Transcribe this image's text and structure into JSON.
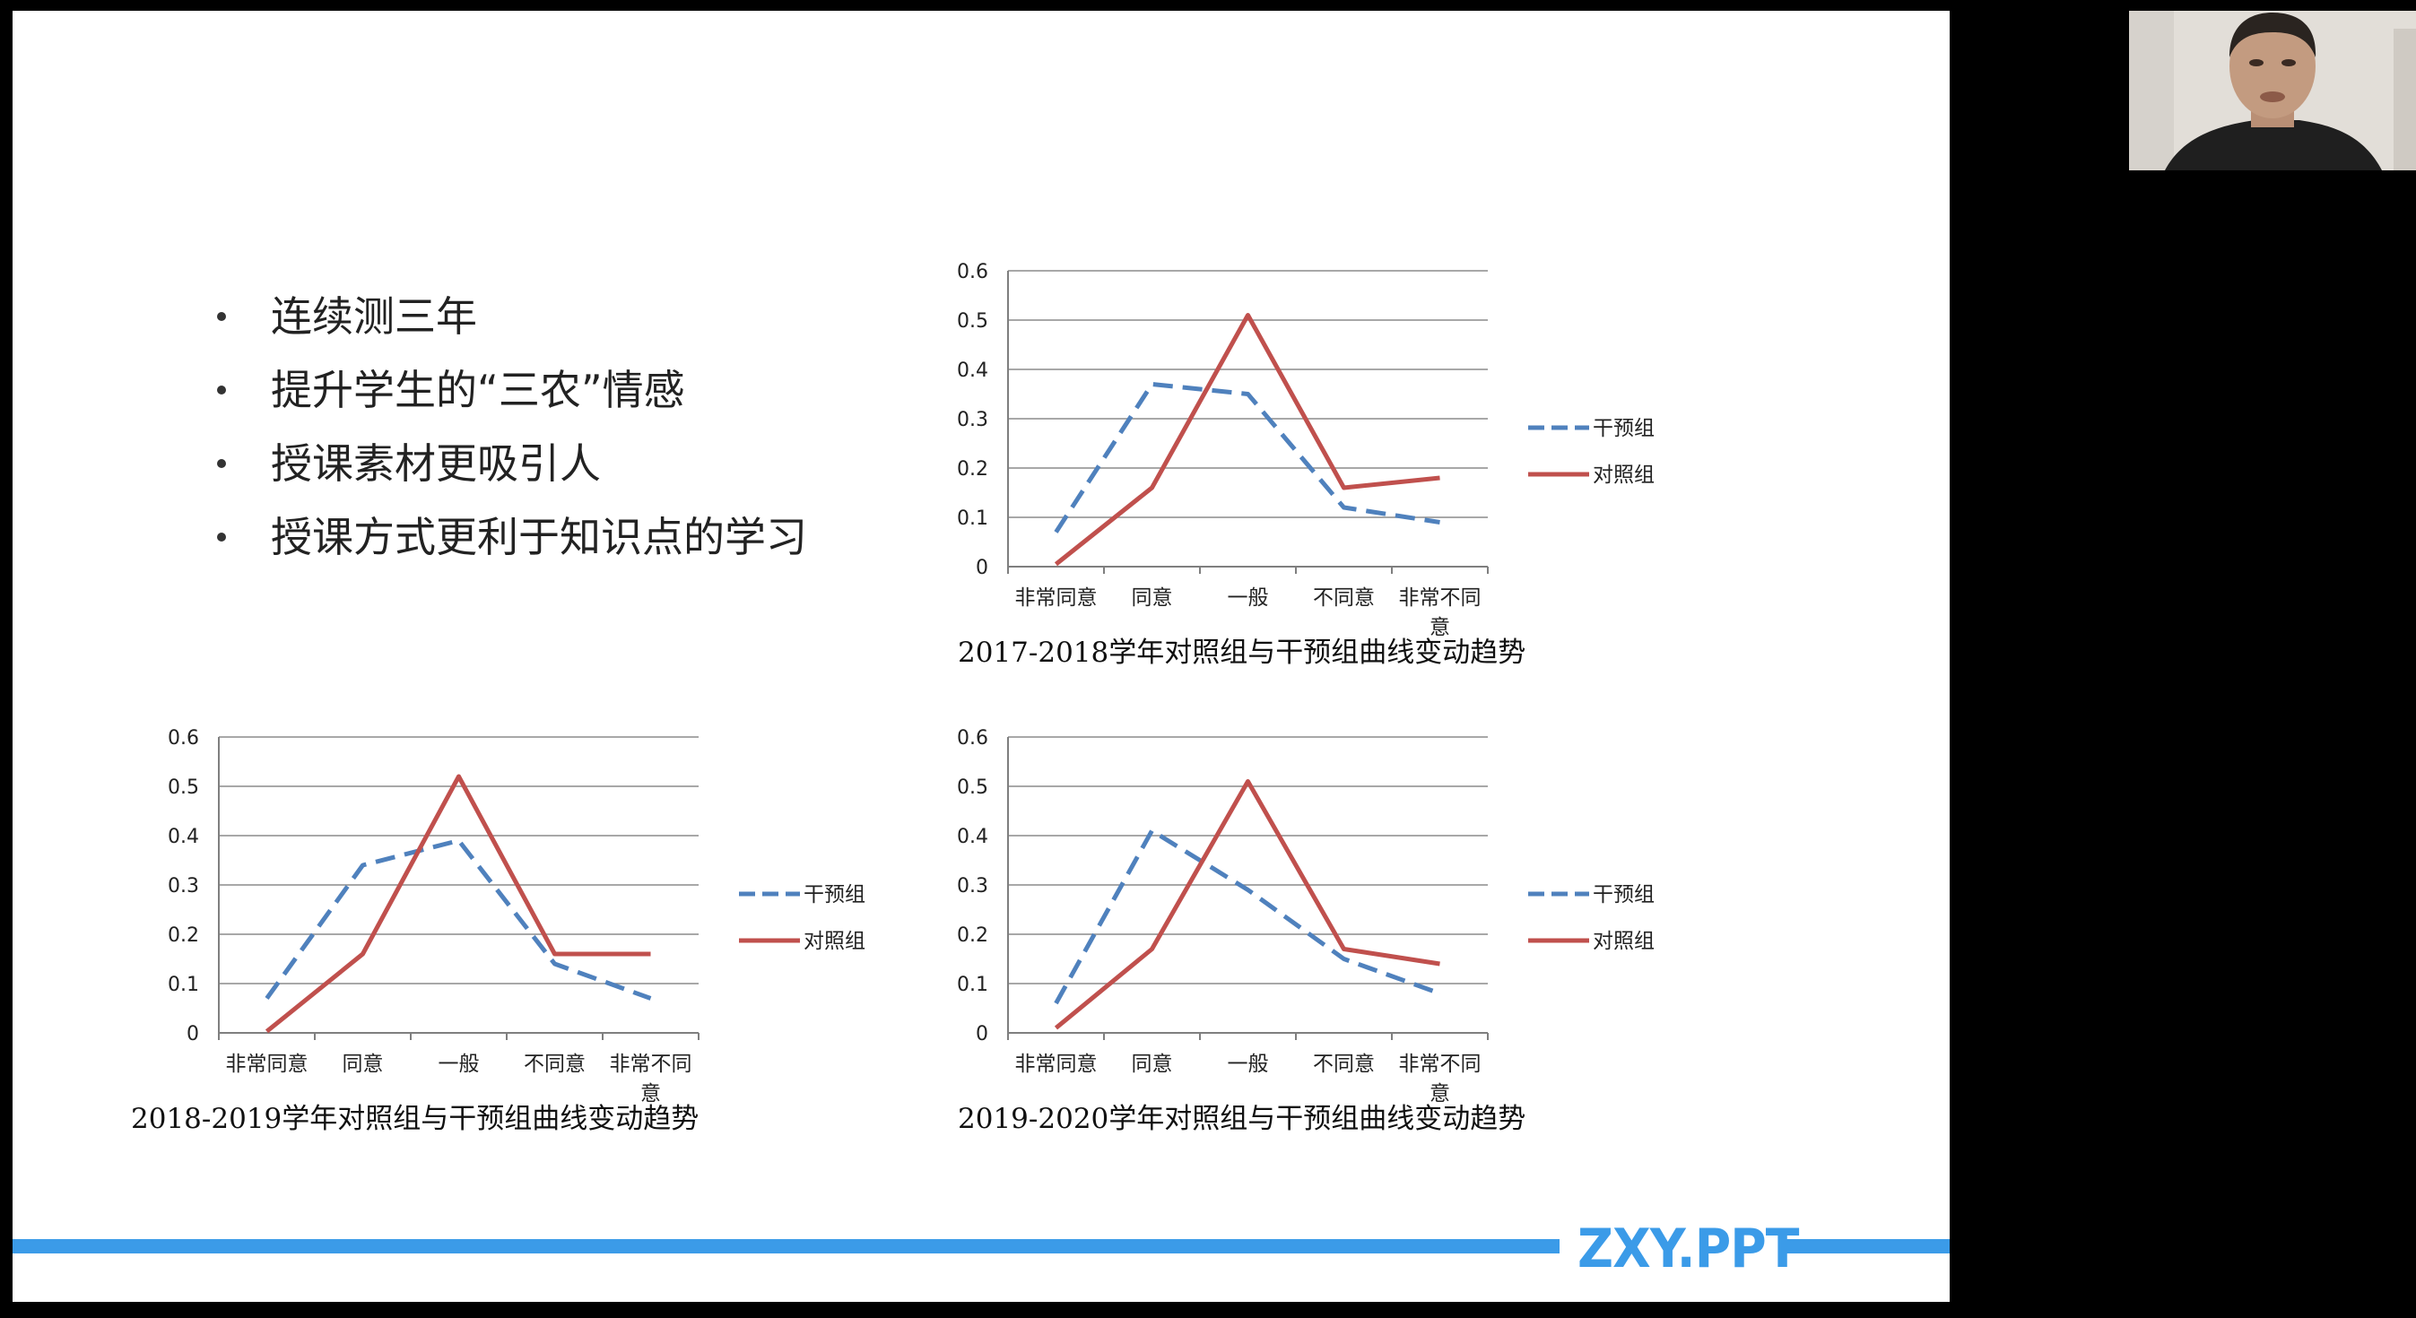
{
  "bullets": [
    "连续测三年",
    "提升学生的“三农”情感",
    "授课素材更吸引人",
    "授课方式更利于知识点的学习"
  ],
  "brand": "ZXY.PPT",
  "colors": {
    "intervention": "#4f81bd",
    "control": "#c0504d",
    "accent": "#3b9be8"
  },
  "chart_data": [
    {
      "type": "line",
      "title": "2017-2018学年对照组与干预组曲线变动趋势",
      "categories": [
        "非常同意",
        "同意",
        "一般",
        "不同意",
        "非常不同意"
      ],
      "ylim": [
        0,
        0.6
      ],
      "yticks": [
        "0",
        "0.1",
        "0.2",
        "0.3",
        "0.4",
        "0.5",
        "0.6"
      ],
      "grid": true,
      "legend": "right",
      "series": [
        {
          "name": "干预组",
          "values": [
            0.07,
            0.37,
            0.35,
            0.12,
            0.09
          ]
        },
        {
          "name": "对照组",
          "values": [
            0.005,
            0.16,
            0.51,
            0.16,
            0.18
          ]
        }
      ]
    },
    {
      "type": "line",
      "title": "2018-2019学年对照组与干预组曲线变动趋势",
      "categories": [
        "非常同意",
        "同意",
        "一般",
        "不同意",
        "非常不同意"
      ],
      "ylim": [
        0,
        0.6
      ],
      "yticks": [
        "0",
        "0.1",
        "0.2",
        "0.3",
        "0.4",
        "0.5",
        "0.6"
      ],
      "grid": true,
      "legend": "right",
      "series": [
        {
          "name": "干预组",
          "values": [
            0.07,
            0.34,
            0.39,
            0.14,
            0.07
          ]
        },
        {
          "name": "对照组",
          "values": [
            0.003,
            0.16,
            0.52,
            0.16,
            0.16
          ]
        }
      ]
    },
    {
      "type": "line",
      "title": "2019-2020学年对照组与干预组曲线变动趋势",
      "categories": [
        "非常同意",
        "同意",
        "一般",
        "不同意",
        "非常不同意"
      ],
      "ylim": [
        0,
        0.6
      ],
      "yticks": [
        "0",
        "0.1",
        "0.2",
        "0.3",
        "0.4",
        "0.5",
        "0.6"
      ],
      "grid": true,
      "legend": "right",
      "series": [
        {
          "name": "干预组",
          "values": [
            0.06,
            0.41,
            0.29,
            0.15,
            0.08
          ]
        },
        {
          "name": "对照组",
          "values": [
            0.01,
            0.17,
            0.51,
            0.17,
            0.14
          ]
        }
      ]
    }
  ]
}
